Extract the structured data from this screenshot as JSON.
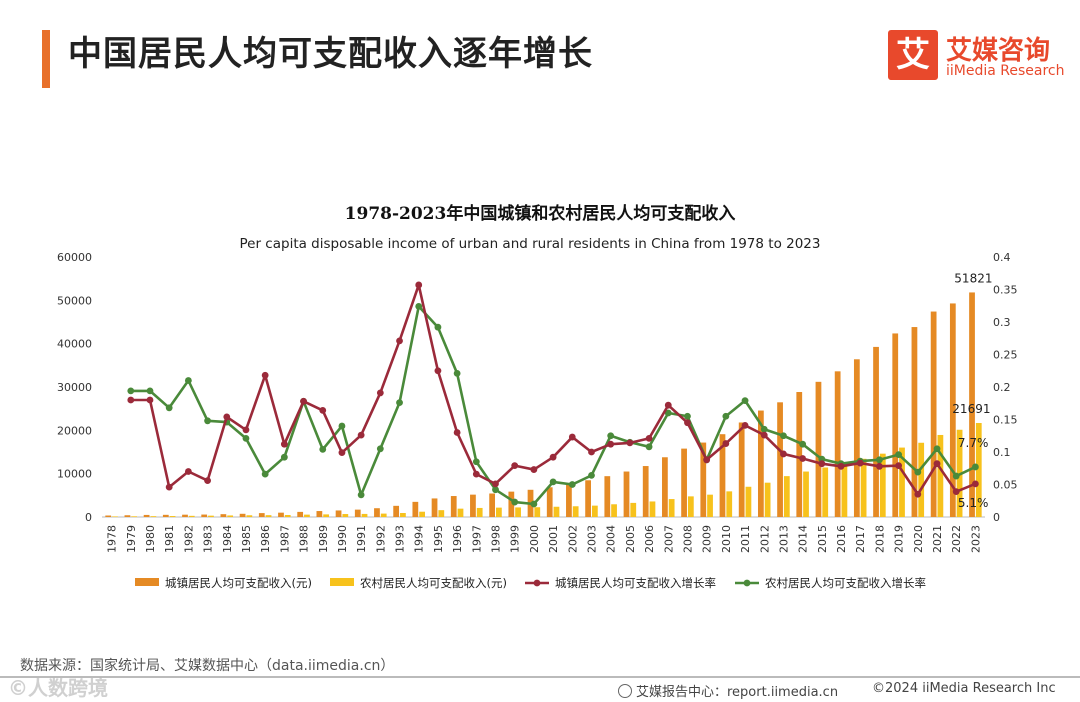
{
  "page_title": "中国居民人均可支配收入逐年增长",
  "logo": {
    "mark": "艾",
    "cn": "艾媒咨询",
    "en": "iiMedia Research"
  },
  "source": "数据来源：国家统计局、艾媒数据中心（data.iimedia.cn）",
  "watermark": "©人数跨境",
  "footer": {
    "report": "艾媒报告中心：report.iimedia.cn",
    "copyright": "©2024  iiMedia Research  Inc"
  },
  "colors": {
    "urban_bar": "#e58a24",
    "rural_bar": "#f7c21c",
    "urban_rate": "#9b2a3a",
    "rural_rate": "#4a8a3a",
    "accent": "#e8702a"
  },
  "chart_data": {
    "type": "bar+line",
    "title": "1978-2023年中国城镇和农村居民人均可支配收入",
    "subtitle": "Per capita disposable income of urban and rural residents in China from 1978 to 2023",
    "categories": [
      "1978",
      "1979",
      "1980",
      "1981",
      "1982",
      "1983",
      "1984",
      "1985",
      "1986",
      "1987",
      "1988",
      "1989",
      "1990",
      "1991",
      "1992",
      "1993",
      "1994",
      "1995",
      "1996",
      "1997",
      "1998",
      "1999",
      "2000",
      "2001",
      "2002",
      "2003",
      "2004",
      "2005",
      "2006",
      "2007",
      "2008",
      "2009",
      "2010",
      "2011",
      "2012",
      "2013",
      "2014",
      "2015",
      "2016",
      "2017",
      "2018",
      "2019",
      "2020",
      "2021",
      "2022",
      "2023"
    ],
    "y_left": {
      "range": [
        0,
        60000
      ],
      "ticks": [
        "0",
        "10000",
        "20000",
        "30000",
        "40000",
        "50000",
        "60000"
      ]
    },
    "y_right": {
      "range": [
        0,
        0.4
      ],
      "ticks": [
        "0",
        "0.05",
        "0.1",
        "0.15",
        "0.2",
        "0.25",
        "0.3",
        "0.35",
        "0.4"
      ]
    },
    "series": [
      {
        "name": "城镇居民人均可支配收入(元)",
        "kind": "bar",
        "axis": "left",
        "values": [
          343,
          405,
          478,
          500,
          535,
          565,
          652,
          739,
          900,
          1002,
          1180,
          1374,
          1510,
          1701,
          2027,
          2577,
          3496,
          4283,
          4839,
          5160,
          5425,
          5854,
          6280,
          6860,
          7703,
          8472,
          9422,
          10493,
          11759,
          13786,
          15781,
          17175,
          19109,
          21810,
          24565,
          26467,
          28844,
          31195,
          33616,
          36396,
          39251,
          42359,
          43834,
          47412,
          49283,
          51821
        ]
      },
      {
        "name": "农村居民人均可支配收入(元)",
        "kind": "bar",
        "axis": "left",
        "values": [
          134,
          160,
          191,
          223,
          270,
          310,
          355,
          398,
          424,
          463,
          545,
          602,
          686,
          709,
          784,
          922,
          1221,
          1578,
          1926,
          2090,
          2162,
          2210,
          2253,
          2366,
          2476,
          2622,
          2936,
          3255,
          3587,
          4140,
          4761,
          5153,
          5919,
          6977,
          7917,
          9430,
          10489,
          11422,
          12363,
          13432,
          14617,
          16021,
          17131,
          18931,
          20133,
          21691
        ]
      },
      {
        "name": "城镇居民人均可支配收入增长率",
        "kind": "line",
        "axis": "right",
        "values": [
          null,
          0.18,
          0.18,
          0.046,
          0.07,
          0.056,
          0.154,
          0.134,
          0.218,
          0.112,
          0.178,
          0.164,
          0.099,
          0.126,
          0.191,
          0.271,
          0.357,
          0.225,
          0.13,
          0.066,
          0.051,
          0.079,
          0.073,
          0.092,
          0.123,
          0.1,
          0.112,
          0.114,
          0.121,
          0.172,
          0.145,
          0.088,
          0.113,
          0.141,
          0.126,
          0.097,
          0.09,
          0.082,
          0.078,
          0.083,
          0.078,
          0.079,
          0.035,
          0.082,
          0.039,
          0.051
        ]
      },
      {
        "name": "农村居民人均可支配收入增长率",
        "kind": "line",
        "axis": "right",
        "values": [
          null,
          0.194,
          0.194,
          0.168,
          0.21,
          0.148,
          0.146,
          0.121,
          0.066,
          0.092,
          0.178,
          0.104,
          0.14,
          0.034,
          0.105,
          0.176,
          0.324,
          0.292,
          0.221,
          0.085,
          0.042,
          0.023,
          0.02,
          0.054,
          0.05,
          0.064,
          0.125,
          0.115,
          0.108,
          0.16,
          0.155,
          0.088,
          0.155,
          0.179,
          0.135,
          0.125,
          0.112,
          0.089,
          0.082,
          0.086,
          0.088,
          0.096,
          0.069,
          0.105,
          0.063,
          0.077
        ]
      }
    ],
    "annotations": [
      "51821",
      "21691",
      "7.7%",
      "5.1%"
    ]
  }
}
